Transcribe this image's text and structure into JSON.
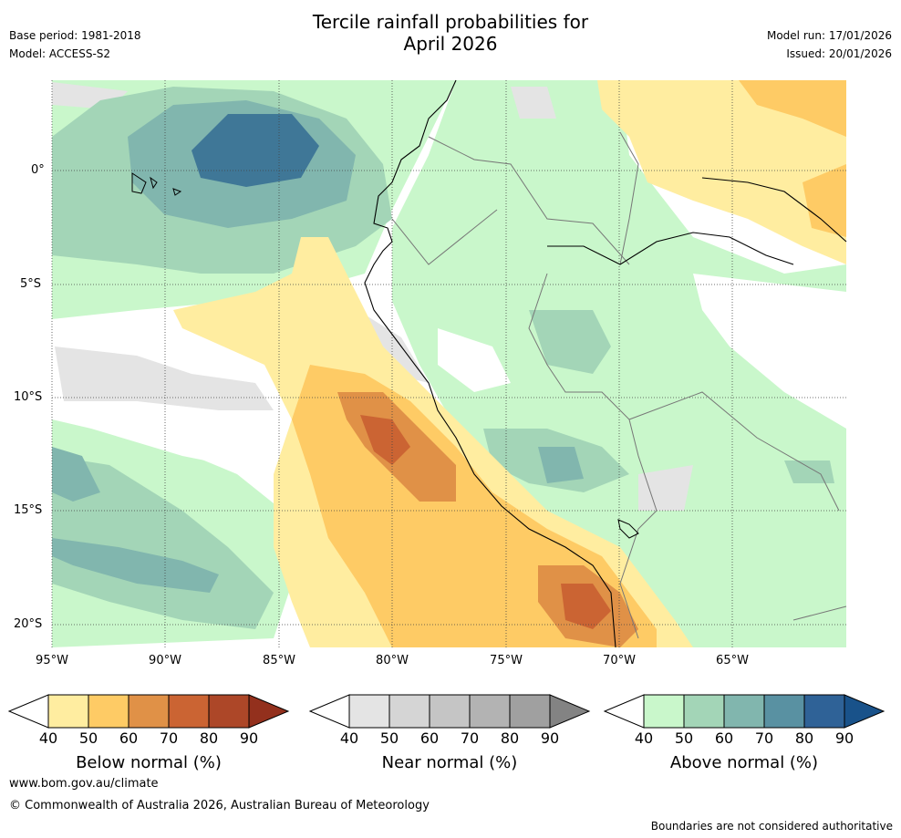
{
  "title": {
    "line1": "Tercile rainfall probabilities for",
    "line2": "April 2026"
  },
  "meta_left": {
    "base_period": "Base period: 1981-2018",
    "model": "Model: ACCESS-S2"
  },
  "meta_right": {
    "model_run": "Model run: 17/01/2026",
    "issued": "Issued: 20/01/2026"
  },
  "lat_labels": [
    "0°",
    "5°S",
    "10°S",
    "15°S",
    "20°S"
  ],
  "lon_labels": [
    "95°W",
    "90°W",
    "85°W",
    "80°W",
    "75°W",
    "70°W",
    "65°W"
  ],
  "colorbars": [
    {
      "label": "Below normal (%)",
      "ticks": [
        "40",
        "50",
        "60",
        "70",
        "80",
        "90"
      ],
      "colors": [
        "#ffeda0",
        "#fecb65",
        "#e09147",
        "#cb6433",
        "#ad4728",
        "#93301d"
      ]
    },
    {
      "label": "Near normal (%)",
      "ticks": [
        "40",
        "50",
        "60",
        "70",
        "80",
        "90"
      ],
      "colors": [
        "#e4e4e4",
        "#d5d5d5",
        "#c5c5c5",
        "#b3b3b3",
        "#a0a0a0",
        "#838383"
      ]
    },
    {
      "label": "Above normal (%)",
      "ticks": [
        "40",
        "50",
        "60",
        "70",
        "80",
        "90"
      ],
      "colors": [
        "#c9f7cb",
        "#a3d5b7",
        "#81b6ae",
        "#5991a2",
        "#2f6297",
        "#19528a"
      ]
    }
  ],
  "colors": {
    "below_1": "#ffeda0",
    "below_2": "#fecb65",
    "below_3": "#e09147",
    "below_4": "#cb6433",
    "near_1": "#e4e4e4",
    "above_1": "#c9f7cb",
    "above_2": "#a3d5b7",
    "above_3": "#81b6ae",
    "above_4": "#5991a2",
    "above_5": "#3f7797"
  },
  "footer": {
    "website": "www.bom.gov.au/climate",
    "copyright": "© Commonwealth of Australia 2026, Australian Bureau of Meteorology",
    "disclaimer": "Boundaries are not considered authoritative"
  }
}
